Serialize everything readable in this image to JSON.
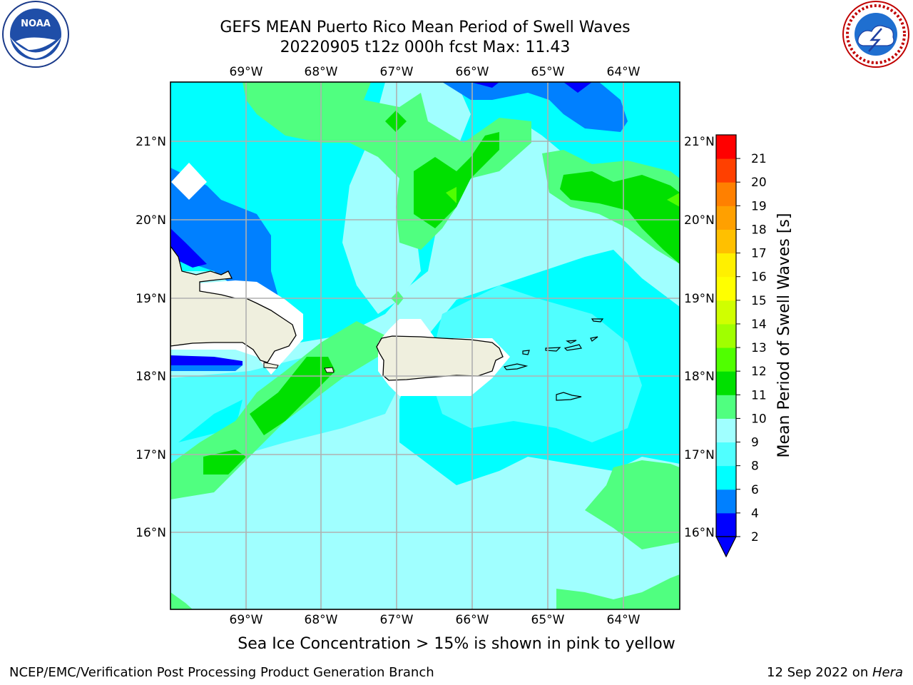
{
  "header": {
    "title": "GEFS MEAN Puerto Rico Mean Period of Swell Waves",
    "subtitle": "20220905 t12z 000h fcst   Max: 11.43",
    "logo_left": "noaa-logo",
    "logo_right": "national-weather-service-logo"
  },
  "map": {
    "lon_labels": [
      "69°W",
      "68°W",
      "67°W",
      "66°W",
      "65°W",
      "64°W"
    ],
    "lat_labels": [
      "21°N",
      "20°N",
      "19°N",
      "18°N",
      "17°N",
      "16°N"
    ],
    "caption": "Sea Ice Concentration > 15% is shown in pink to yellow"
  },
  "colorbar": {
    "label": "Mean Period of Swell Waves [s]",
    "ticks": [
      "21",
      "20",
      "19",
      "18",
      "17",
      "16",
      "15",
      "14",
      "13",
      "12",
      "11",
      "10",
      "9",
      "8",
      "6",
      "4",
      "2"
    ],
    "colors": [
      "#0000ff",
      "#0080ff",
      "#00ffff",
      "#50ffff",
      "#a0ffff",
      "#50ff80",
      "#00e000",
      "#50ff00",
      "#a0ff00",
      "#d0ff00",
      "#ffff00",
      "#fff000",
      "#ffc000",
      "#ffa000",
      "#ff8000",
      "#ff4000",
      "#ff0000"
    ]
  },
  "footer": {
    "left": "NCEP/EMC/Verification Post Processing Product Generation Branch",
    "date": "12 Sep 2022 on ",
    "machine": "Hera"
  }
}
